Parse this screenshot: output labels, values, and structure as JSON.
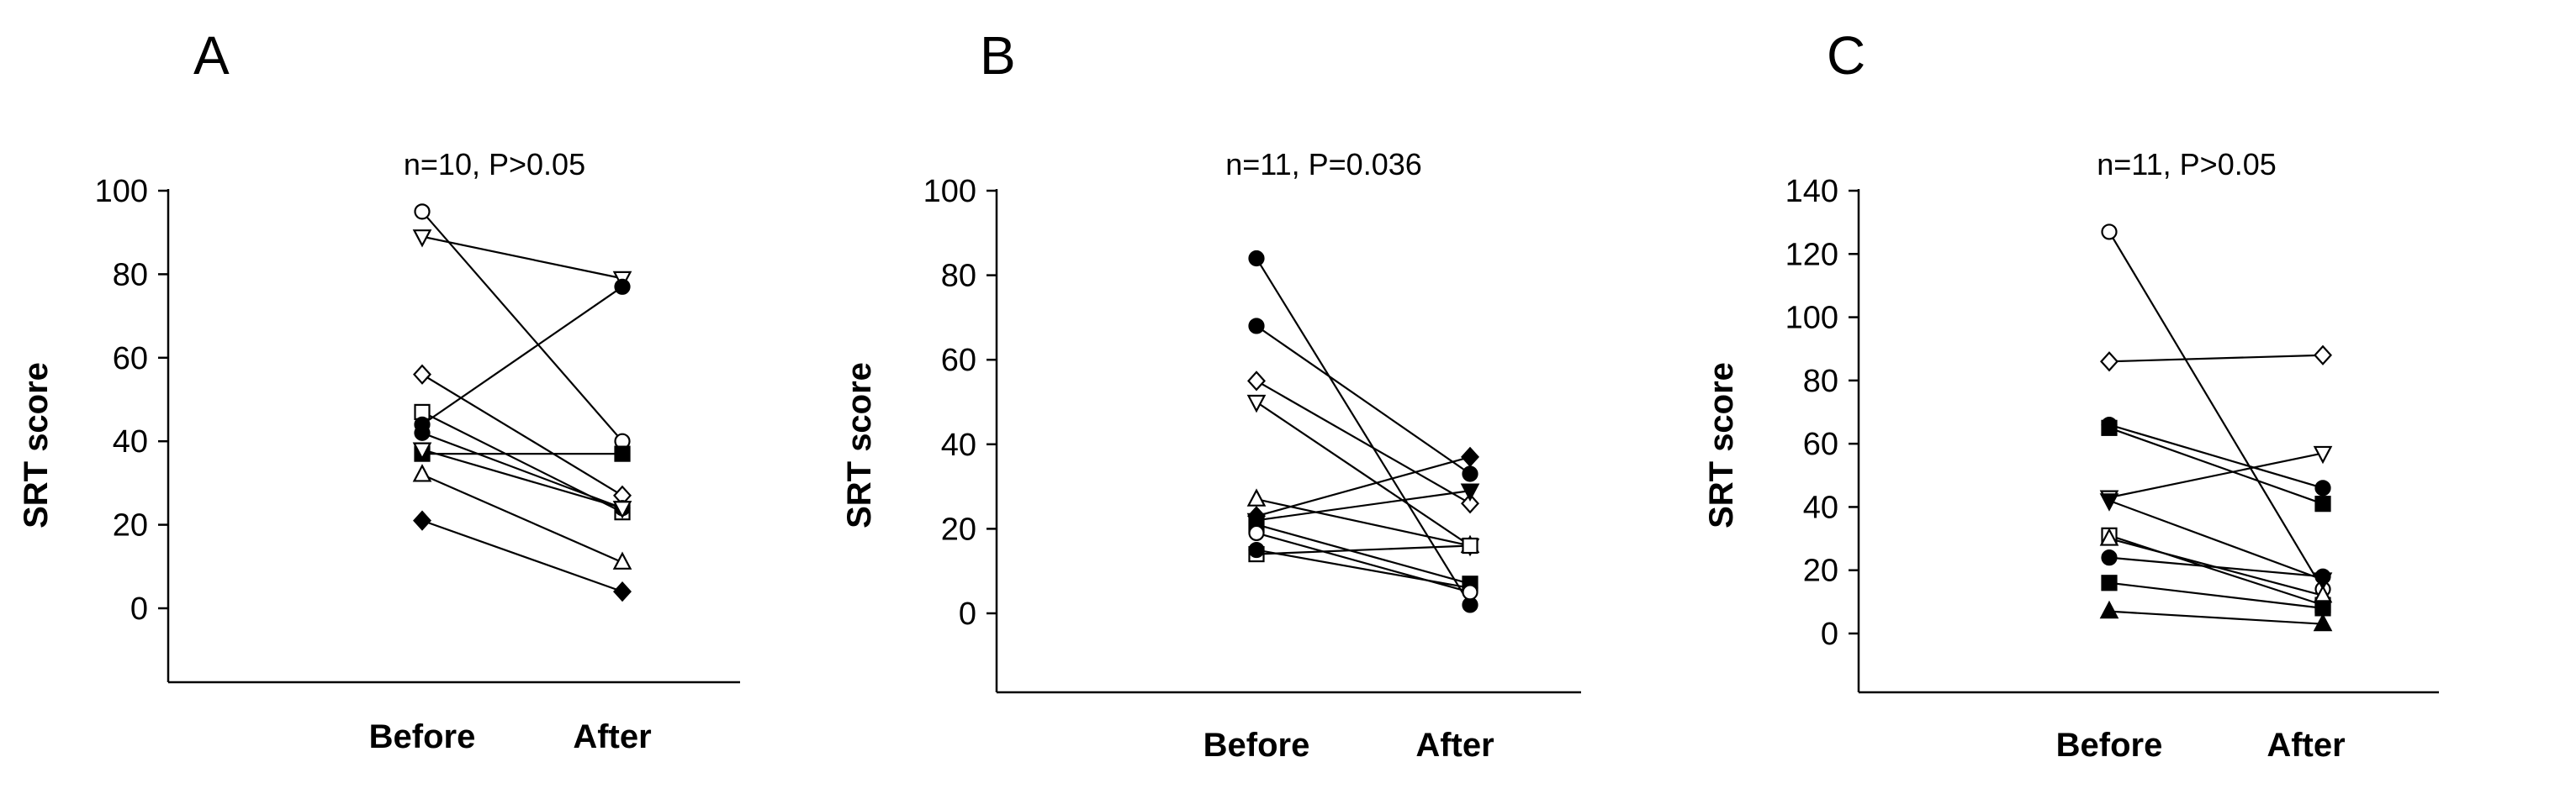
{
  "chart_data": [
    {
      "type": "line",
      "panel_label": "A",
      "title": "n=10, P>0.05",
      "xlabel": "",
      "ylabel": "SRT score",
      "categories": [
        "Before",
        "After"
      ],
      "ylim": [
        0,
        100
      ],
      "yticks": [
        0,
        20,
        40,
        60,
        80,
        100
      ],
      "series": [
        {
          "marker": "circle-open",
          "values": [
            95,
            40
          ]
        },
        {
          "marker": "triangle-down-open",
          "values": [
            89,
            79
          ]
        },
        {
          "marker": "diamond-open",
          "values": [
            56,
            27
          ]
        },
        {
          "marker": "square-open",
          "values": [
            47,
            23
          ]
        },
        {
          "marker": "circle-filled",
          "values": [
            44,
            77
          ]
        },
        {
          "marker": "circle-filled",
          "values": [
            42,
            24
          ]
        },
        {
          "marker": "square-filled",
          "values": [
            37,
            37
          ]
        },
        {
          "marker": "triangle-open",
          "values": [
            32,
            11
          ]
        },
        {
          "marker": "diamond-filled",
          "values": [
            21,
            4
          ]
        },
        {
          "marker": "triangle-down-open",
          "values": [
            38,
            24
          ]
        }
      ]
    },
    {
      "type": "line",
      "panel_label": "B",
      "title": "n=11, P=0.036",
      "xlabel": "",
      "ylabel": "SRT score",
      "categories": [
        "Before",
        "After"
      ],
      "ylim": [
        0,
        100
      ],
      "yticks": [
        0,
        20,
        40,
        60,
        80,
        100
      ],
      "series": [
        {
          "marker": "circle-filled",
          "values": [
            84,
            2
          ]
        },
        {
          "marker": "circle-filled",
          "values": [
            68,
            33
          ]
        },
        {
          "marker": "diamond-open",
          "values": [
            55,
            26
          ]
        },
        {
          "marker": "triangle-down-open",
          "values": [
            50,
            16
          ]
        },
        {
          "marker": "triangle-open",
          "values": [
            27,
            16
          ]
        },
        {
          "marker": "diamond-filled",
          "values": [
            23,
            37
          ]
        },
        {
          "marker": "triangle-down-filled",
          "values": [
            22,
            29
          ]
        },
        {
          "marker": "square-filled",
          "values": [
            21,
            7
          ]
        },
        {
          "marker": "square-open",
          "values": [
            14,
            16
          ]
        },
        {
          "marker": "circle-filled",
          "values": [
            15,
            6
          ]
        },
        {
          "marker": "circle-open",
          "values": [
            19,
            5
          ]
        }
      ]
    },
    {
      "type": "line",
      "panel_label": "C",
      "title": "n=11, P>0.05",
      "xlabel": "",
      "ylabel": "SRT score",
      "categories": [
        "Before",
        "After"
      ],
      "ylim": [
        0,
        140
      ],
      "yticks": [
        0,
        20,
        40,
        60,
        80,
        100,
        120,
        140
      ],
      "series": [
        {
          "marker": "circle-open",
          "values": [
            127,
            14
          ]
        },
        {
          "marker": "diamond-open",
          "values": [
            86,
            88
          ]
        },
        {
          "marker": "circle-filled",
          "values": [
            66,
            46
          ]
        },
        {
          "marker": "square-filled",
          "values": [
            65,
            41
          ]
        },
        {
          "marker": "triangle-down-open",
          "values": [
            43,
            57
          ]
        },
        {
          "marker": "triangle-down-filled",
          "values": [
            42,
            17
          ]
        },
        {
          "marker": "square-open",
          "values": [
            31,
            9
          ]
        },
        {
          "marker": "triangle-open",
          "values": [
            30,
            12
          ]
        },
        {
          "marker": "circle-filled",
          "values": [
            24,
            18
          ]
        },
        {
          "marker": "square-filled",
          "values": [
            16,
            8
          ]
        },
        {
          "marker": "triangle-filled",
          "values": [
            7,
            3
          ]
        }
      ]
    }
  ]
}
